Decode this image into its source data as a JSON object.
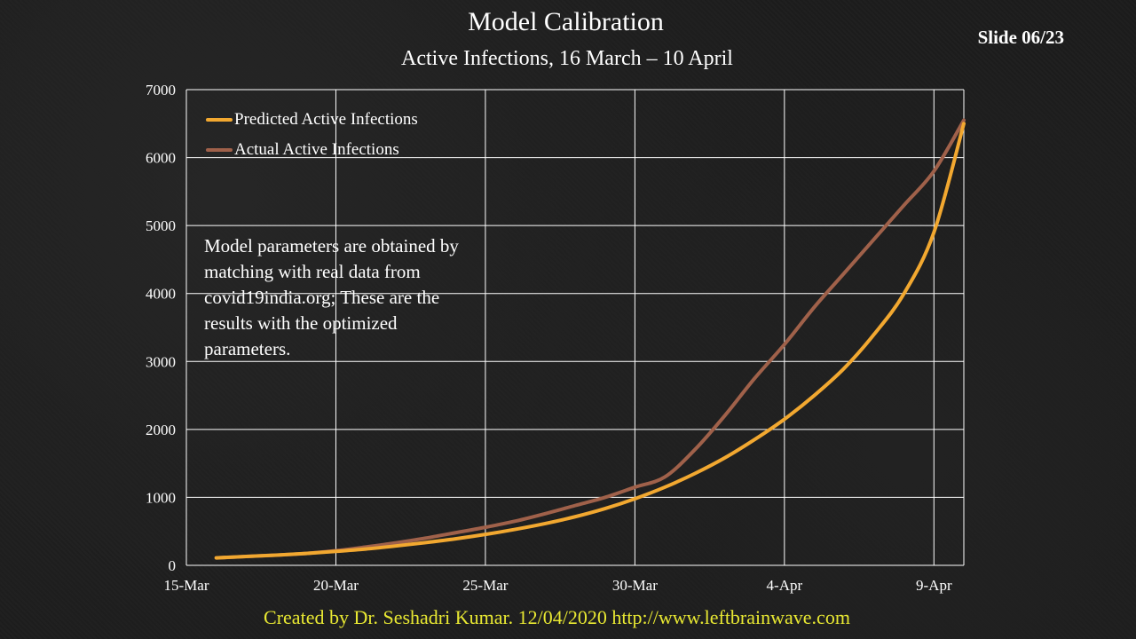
{
  "slide": {
    "title": "Model Calibration",
    "subtitle": "Active Infections, 16 March – 10 April",
    "slide_number": "Slide 06/23",
    "note": "Model parameters are obtained by matching with real data from covid19india.org; These are the results with the optimized parameters.",
    "footer": "Created by Dr. Seshadri Kumar. 12/04/2020 http://www.leftbrainwave.com"
  },
  "colors": {
    "predicted": "#f2a830",
    "actual": "#a0614a",
    "grid": "#ffffff",
    "footer": "#e8e832"
  },
  "chart_data": {
    "type": "line",
    "title": "",
    "xlabel": "",
    "ylabel": "",
    "x_ticks": [
      "15-Mar",
      "20-Mar",
      "25-Mar",
      "30-Mar",
      "4-Apr",
      "9-Apr"
    ],
    "y_ticks": [
      "0",
      "1000",
      "2000",
      "3000",
      "4000",
      "5000",
      "6000",
      "7000"
    ],
    "ylim": [
      0,
      7000
    ],
    "xlim": [
      "2020-03-15",
      "2020-04-10"
    ],
    "grid": true,
    "legend_position": "top-left",
    "x": [
      "2020-03-16",
      "2020-03-17",
      "2020-03-18",
      "2020-03-19",
      "2020-03-20",
      "2020-03-21",
      "2020-03-22",
      "2020-03-23",
      "2020-03-24",
      "2020-03-25",
      "2020-03-26",
      "2020-03-27",
      "2020-03-28",
      "2020-03-29",
      "2020-03-30",
      "2020-03-31",
      "2020-04-01",
      "2020-04-02",
      "2020-04-03",
      "2020-04-04",
      "2020-04-05",
      "2020-04-06",
      "2020-04-07",
      "2020-04-08",
      "2020-04-09",
      "2020-04-10"
    ],
    "series": [
      {
        "name": "Predicted Active Infections",
        "values": [
          110,
          130,
          150,
          175,
          205,
          240,
          285,
          335,
          390,
          455,
          530,
          615,
          715,
          835,
          980,
          1150,
          1350,
          1580,
          1850,
          2150,
          2500,
          2900,
          3400,
          4000,
          4900,
          6500
        ]
      },
      {
        "name": "Actual Active Infections",
        "values": [
          110,
          130,
          150,
          175,
          215,
          270,
          330,
          400,
          480,
          560,
          650,
          760,
          880,
          1000,
          1150,
          1300,
          1700,
          2200,
          2750,
          3250,
          3800,
          4300,
          4800,
          5300,
          5800,
          6550
        ]
      }
    ]
  }
}
